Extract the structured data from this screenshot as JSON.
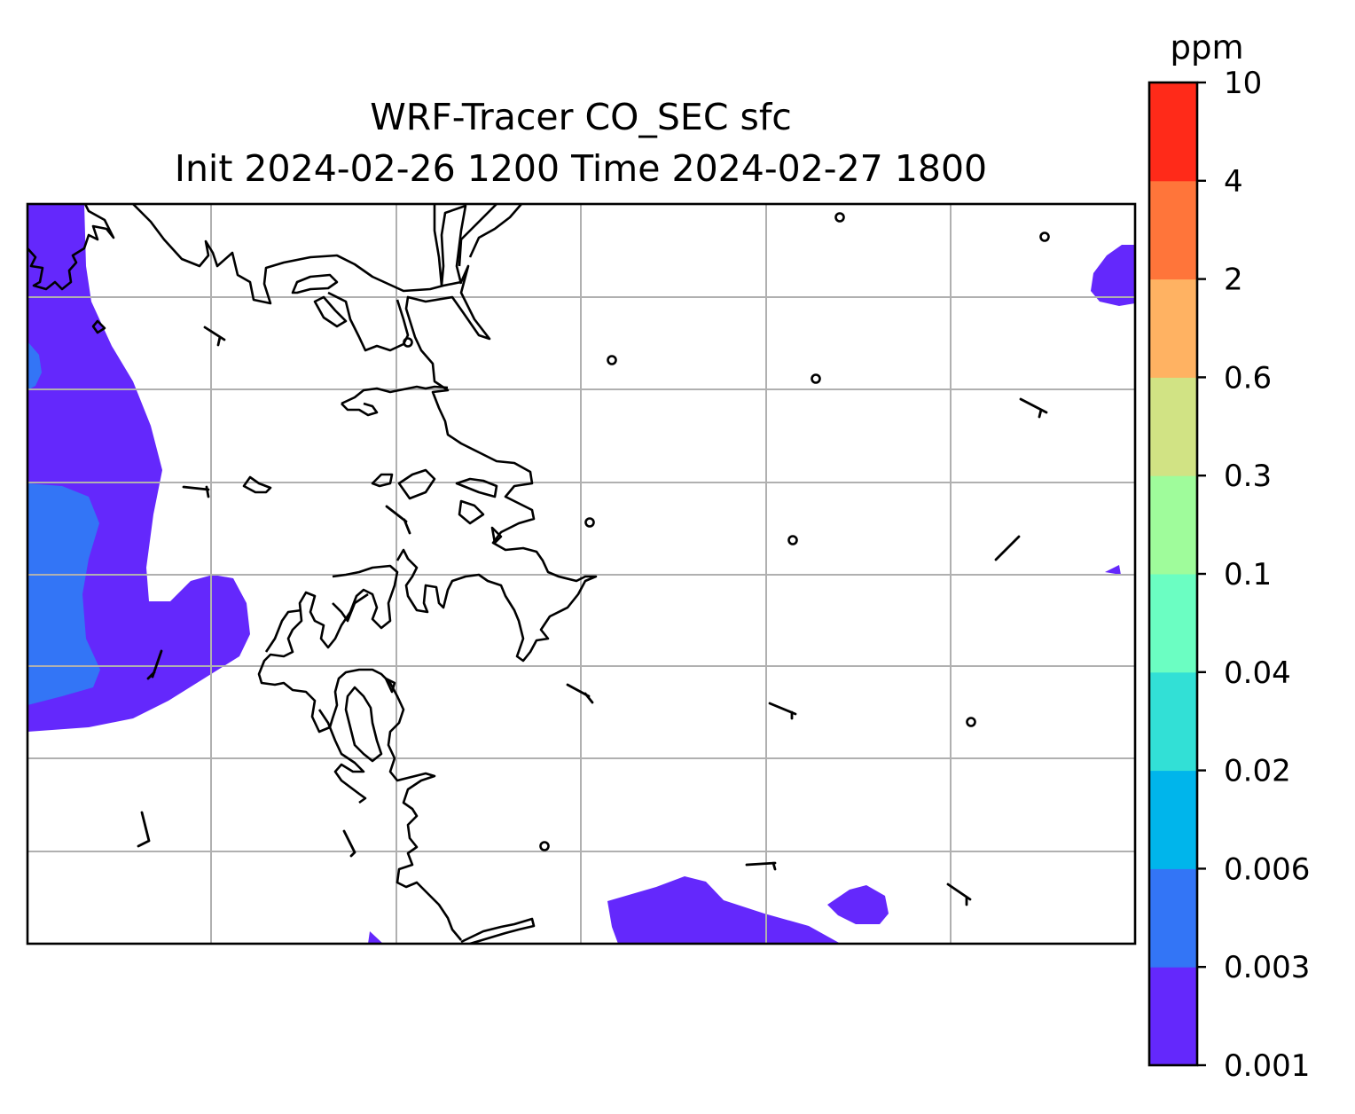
{
  "title_line_1": "WRF-Tracer CO_SEC sfc",
  "title_line_2": "Init 2024-02-26 1200 Time 2024-02-27 1800",
  "colorbar": {
    "unit": "ppm",
    "levels": [
      "0.001",
      "0.003",
      "0.006",
      "0.02",
      "0.04",
      "0.1",
      "0.3",
      "0.6",
      "2",
      "4",
      "10"
    ],
    "colors": [
      "#6428fc",
      "#3375f6",
      "#00b5eb",
      "#32e0d6",
      "#6bfec2",
      "#9ffc9b",
      "#d1e384",
      "#ffb262",
      "#ff753a",
      "#ff2a19"
    ]
  },
  "map": {
    "gridlines": true,
    "shading": [
      {
        "level": "0.001",
        "color": "#6428fc",
        "area": "western-edge"
      },
      {
        "level": "0.003",
        "color": "#3375f6",
        "area": "western-edge-inner"
      },
      {
        "level": "0.006",
        "color": "#00b5eb",
        "area": "western-edge-sliver"
      },
      {
        "level": "0.001",
        "color": "#6428fc",
        "area": "south-center"
      },
      {
        "level": "0.001",
        "color": "#6428fc",
        "area": "north-east-corner"
      }
    ],
    "wind_barb_count": 13,
    "calm_wind_markers": 9
  }
}
